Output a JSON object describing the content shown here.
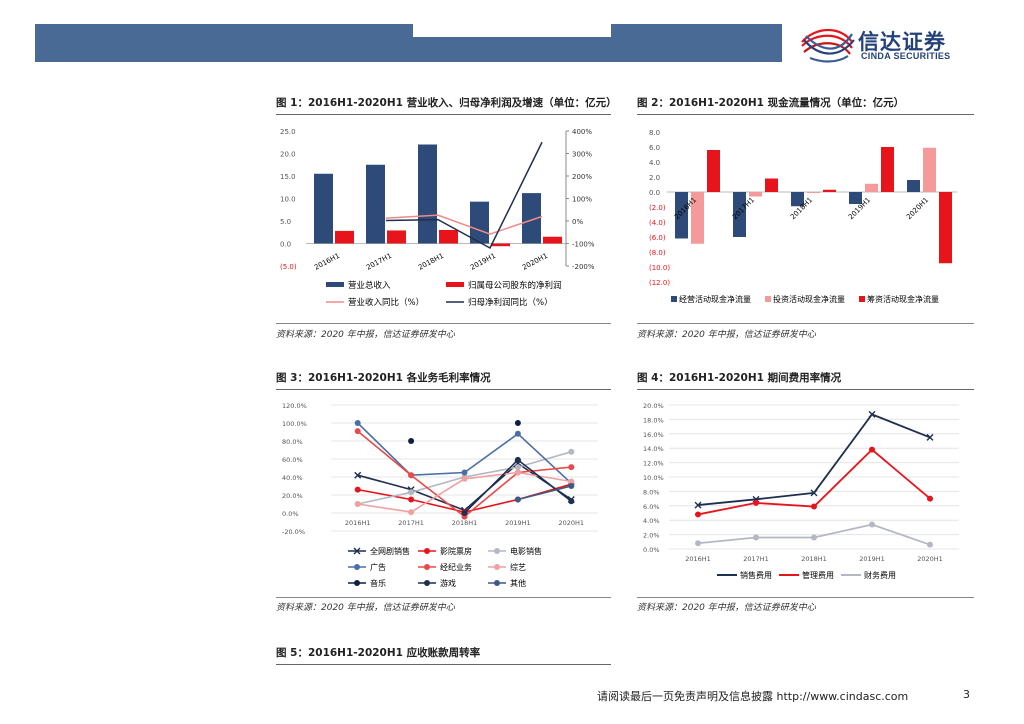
{
  "header": {
    "logo_cn": "信达证券",
    "logo_en": "CINDA SECURITIES"
  },
  "source_note": "资料来源：2020 年中报，信达证券研发中心",
  "figures": {
    "fig1": {
      "title": "图 1：2016H1-2020H1 营业收入、归母净利润及增速（单位：亿元）",
      "legend": [
        "营业总收入",
        "归属母公司股东的净利润",
        "营业收入同比（%）",
        "归母净利润同比（%）"
      ]
    },
    "fig2": {
      "title": "图 2：2016H1-2020H1 现金流量情况（单位：亿元）",
      "legend": [
        "经营活动现金净流量",
        "投资活动现金净流量",
        "筹资活动现金净流量"
      ]
    },
    "fig3": {
      "title": "图 3：2016H1-2020H1 各业务毛利率情况",
      "legend": [
        "全网剧销售",
        "影院票房",
        "电影销售",
        "广告",
        "经纪业务",
        "综艺",
        "音乐",
        "游戏",
        "其他"
      ]
    },
    "fig4": {
      "title": "图 4：2016H1-2020H1 期间费用率情况",
      "legend": [
        "销售费用",
        "管理费用",
        "财务费用"
      ]
    },
    "fig5": {
      "title": "图 5：2016H1-2020H1 应收账款周转率"
    }
  },
  "footer": {
    "disclaimer": "请阅读最后一页免责声明及信息披露 http://www.cindasc.com",
    "page": "3"
  },
  "chart_data": [
    {
      "type": "bar",
      "categories": [
        "2016H1",
        "2017H1",
        "2018H1",
        "2019H1",
        "2020H1"
      ],
      "ylim": [
        -5,
        25
      ],
      "y2lim": [
        -200,
        400
      ],
      "y_ticks": [
        "25.0",
        "20.0",
        "15.0",
        "10.0",
        "5.0",
        "0.0",
        "(5.0)"
      ],
      "y2_ticks": [
        "400%",
        "300%",
        "200%",
        "100%",
        "0%",
        "-100%",
        "-200%"
      ],
      "series": [
        {
          "name": "营业总收入",
          "kind": "bar",
          "axis": "left",
          "color": "#2e4a78",
          "values": [
            15.5,
            17.5,
            22.0,
            9.3,
            11.2
          ]
        },
        {
          "name": "归属母公司股东的净利润",
          "kind": "bar",
          "axis": "left",
          "color": "#e8141c",
          "values": [
            2.8,
            2.9,
            3.0,
            -0.6,
            1.5
          ]
        },
        {
          "name": "营业收入同比（%）",
          "kind": "line",
          "axis": "right",
          "color": "#f08a8a",
          "values": [
            null,
            13,
            26,
            -58,
            20
          ]
        },
        {
          "name": "归母净利润同比（%）",
          "kind": "line",
          "axis": "right",
          "color": "#1f2f4f",
          "values": [
            null,
            2,
            6,
            -120,
            350
          ]
        }
      ]
    },
    {
      "type": "bar",
      "categories": [
        "2016H1",
        "2017H1",
        "2018H1",
        "2019H1",
        "2020H1"
      ],
      "ylim": [
        -12,
        8
      ],
      "y_ticks": [
        "8.0",
        "6.0",
        "4.0",
        "2.0",
        "0.0",
        "(2.0)",
        "(4.0)",
        "(6.0)",
        "(8.0)",
        "(10.0)",
        "(12.0)"
      ],
      "series": [
        {
          "name": "经营活动现金净流量",
          "color": "#2e4a78",
          "values": [
            -6.2,
            -6.0,
            -1.9,
            -1.6,
            1.6
          ]
        },
        {
          "name": "投资活动现金净流量",
          "color": "#f49a9a",
          "values": [
            -6.9,
            -0.6,
            0.0,
            1.1,
            5.9
          ]
        },
        {
          "name": "筹资活动现金净流量",
          "color": "#e8141c",
          "values": [
            5.6,
            1.8,
            0.3,
            6.0,
            -9.5
          ]
        }
      ]
    },
    {
      "type": "line",
      "categories": [
        "2016H1",
        "2017H1",
        "2018H1",
        "2019H1",
        "2020H1"
      ],
      "ylim": [
        -20,
        120
      ],
      "y_ticks": [
        "120.0%",
        "100.0%",
        "80.0%",
        "60.0%",
        "40.0%",
        "20.0%",
        "0.0%",
        "-20.0%"
      ],
      "series": [
        {
          "name": "全网剧销售",
          "color": "#1f2f4f",
          "marker": "x",
          "values": [
            42,
            26,
            3,
            55,
            15
          ]
        },
        {
          "name": "影院票房",
          "color": "#e8141c",
          "marker": "dot",
          "values": [
            26,
            15,
            1,
            15,
            32
          ]
        },
        {
          "name": "电影销售",
          "color": "#b4b8c2",
          "marker": "dot",
          "values": [
            10,
            23,
            40,
            51,
            68
          ]
        },
        {
          "name": "广告",
          "color": "#4a6fa8",
          "marker": "dot",
          "values": [
            100,
            42,
            45,
            88,
            33
          ]
        },
        {
          "name": "经纪业务",
          "color": "#e84a4a",
          "marker": "dot",
          "values": [
            91,
            42,
            -4,
            45,
            51
          ]
        },
        {
          "name": "综艺",
          "color": "#f0a0a0",
          "marker": "dot",
          "values": [
            10,
            1,
            38,
            45,
            35
          ]
        },
        {
          "name": "音乐",
          "color": "#0f1f3f",
          "marker": "dot",
          "values": [
            null,
            80,
            null,
            100,
            null
          ]
        },
        {
          "name": "游戏",
          "color": "#1f2f4f",
          "marker": "dot",
          "values": [
            null,
            null,
            0,
            59,
            13
          ]
        },
        {
          "name": "其他",
          "color": "#3c5a86",
          "marker": "dot",
          "values": [
            null,
            null,
            null,
            15,
            30
          ]
        }
      ]
    },
    {
      "type": "line",
      "categories": [
        "2016H1",
        "2017H1",
        "2018H1",
        "2019H1",
        "2020H1"
      ],
      "ylim": [
        0,
        20
      ],
      "y_ticks": [
        "20.0%",
        "18.0%",
        "16.0%",
        "14.0%",
        "12.0%",
        "10.0%",
        "8.0%",
        "6.0%",
        "4.0%",
        "2.0%",
        "0.0%"
      ],
      "series": [
        {
          "name": "销售费用",
          "color": "#1f2f4f",
          "marker": "x",
          "values": [
            6.1,
            6.9,
            7.8,
            18.7,
            15.5
          ]
        },
        {
          "name": "管理费用",
          "color": "#e8141c",
          "marker": "dot",
          "values": [
            4.8,
            6.4,
            5.9,
            13.8,
            7.0
          ]
        },
        {
          "name": "财务费用",
          "color": "#b4b8c2",
          "marker": "dot",
          "values": [
            0.8,
            1.6,
            1.6,
            3.4,
            0.6
          ]
        }
      ]
    }
  ]
}
